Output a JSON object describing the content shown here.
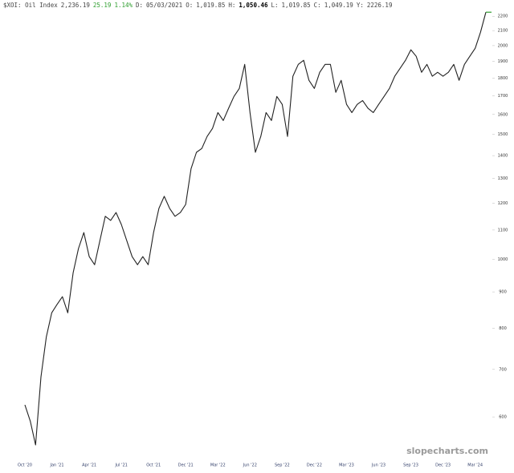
{
  "chart_data": {
    "type": "line",
    "title": "$XOI: Oil Index",
    "info": [
      {
        "value": "2,236.19"
      },
      {
        "value": "25.19",
        "color": "#2e9e2e"
      },
      {
        "value": "1.14%",
        "color": "#2e9e2e"
      },
      {
        "label": "D:",
        "value": "05/03/2021"
      },
      {
        "label": "O:",
        "value": "1,019.85"
      },
      {
        "label": "H:",
        "value": "1,050.46",
        "bold": true
      },
      {
        "label": "L:",
        "value": "1,019.85"
      },
      {
        "label": "C:",
        "value": "1,049.19"
      },
      {
        "label": "Y:",
        "value": "2226.19"
      }
    ],
    "watermark": "slopecharts.com",
    "categories": [
      "Oct '20",
      null,
      null,
      null,
      null,
      null,
      "Jan '21",
      null,
      null,
      null,
      null,
      null,
      "Apr '21",
      null,
      null,
      null,
      null,
      null,
      "Jul '21",
      null,
      null,
      null,
      null,
      null,
      "Oct '21",
      null,
      null,
      null,
      null,
      null,
      "Dec '21",
      null,
      null,
      null,
      null,
      null,
      "Mar '22",
      null,
      null,
      null,
      null,
      null,
      "Jun '22",
      null,
      null,
      null,
      null,
      null,
      "Sep '22",
      null,
      null,
      null,
      null,
      null,
      "Dec '22",
      null,
      null,
      null,
      null,
      null,
      "Mar '23",
      null,
      null,
      null,
      null,
      null,
      "Jun '23",
      null,
      null,
      null,
      null,
      null,
      "Sep '23",
      null,
      null,
      null,
      null,
      null,
      "Dec '23",
      null,
      null,
      null,
      null,
      null,
      "Mar '24",
      null,
      null
    ],
    "series": [
      {
        "name": "$XOI",
        "color": "#222222",
        "values": [
          624,
          592,
          548,
          683,
          778,
          841,
          864,
          886,
          841,
          958,
          1036,
          1091,
          1009,
          983,
          1063,
          1150,
          1135,
          1164,
          1120,
          1063,
          1009,
          983,
          1009,
          983,
          1091,
          1180,
          1227,
          1180,
          1150,
          1164,
          1195,
          1342,
          1415,
          1433,
          1490,
          1529,
          1610,
          1569,
          1632,
          1696,
          1741,
          1882,
          1610,
          1415,
          1490,
          1610,
          1569,
          1696,
          1653,
          1490,
          1811,
          1882,
          1907,
          1787,
          1741,
          1834,
          1882,
          1882,
          1719,
          1787,
          1653,
          1610,
          1653,
          1674,
          1632,
          1610,
          1653,
          1696,
          1741,
          1811,
          1858,
          1907,
          1973,
          1932,
          1834,
          1882,
          1811,
          1834,
          1811,
          1834,
          1882,
          1787,
          1882,
          1932,
          1983,
          2089,
          2229
        ]
      }
    ],
    "last_value_color": "#2e9e2e",
    "log_scale": true,
    "ylim": [
      527,
      2236
    ],
    "yticks": [
      600,
      700,
      800,
      900,
      1000,
      1100,
      1200,
      1300,
      1400,
      1500,
      1600,
      1700,
      1800,
      1900,
      2000,
      2100,
      2200
    ]
  }
}
